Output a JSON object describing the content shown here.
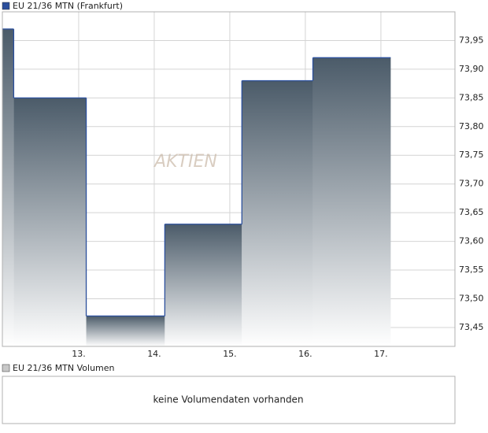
{
  "chart_data": {
    "type": "step",
    "legend": "EU 21/36 MTN (Frankfurt)",
    "watermark": "AKTIEN",
    "x": [
      11.99,
      12.14,
      13.1,
      14.14,
      15.16,
      16.1,
      17.13
    ],
    "values": [
      73.97,
      73.85,
      73.47,
      73.63,
      73.88,
      73.92,
      73.92
    ],
    "color": "#2b4f9c",
    "fill_top": "#4b5b69",
    "xlim": [
      11.99,
      17.98
    ],
    "xticks": [
      {
        "value": 13,
        "label": "13."
      },
      {
        "value": 14,
        "label": "14."
      },
      {
        "value": 15,
        "label": "15."
      },
      {
        "value": 16,
        "label": "16."
      },
      {
        "value": 17,
        "label": "17."
      }
    ],
    "ylim": [
      73.417,
      74.0
    ],
    "yticks": [
      {
        "value": 73.45,
        "label": "73,45"
      },
      {
        "value": 73.5,
        "label": "73,50"
      },
      {
        "value": 73.55,
        "label": "73,55"
      },
      {
        "value": 73.6,
        "label": "73,60"
      },
      {
        "value": 73.65,
        "label": "73,65"
      },
      {
        "value": 73.7,
        "label": "73,70"
      },
      {
        "value": 73.75,
        "label": "73,75"
      },
      {
        "value": 73.8,
        "label": "73,80"
      },
      {
        "value": 73.85,
        "label": "73,85"
      },
      {
        "value": 73.9,
        "label": "73,90"
      },
      {
        "value": 73.95,
        "label": "73,95"
      }
    ],
    "grid": true
  },
  "volume": {
    "legend": "EU 21/36 MTN Volumen",
    "message": "keine Volumendaten vorhanden"
  }
}
